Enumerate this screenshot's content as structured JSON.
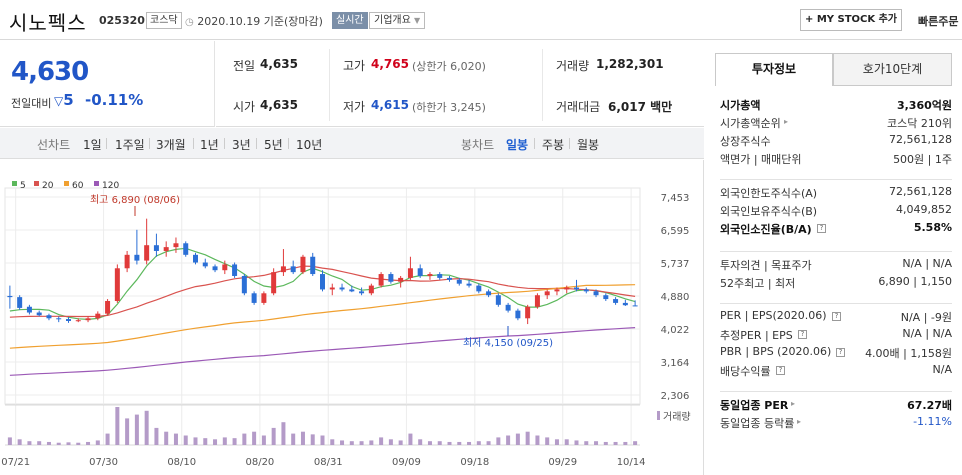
{
  "header": {
    "name": "시노펙스",
    "code": "025320",
    "market": "코스닥",
    "date_note": "2020.10.19 기준(장마감)",
    "realtime": "실시간",
    "corp_info": "기업개요",
    "mystock": "+ MY STOCK 추가",
    "quick_order": "빠른주문"
  },
  "price": {
    "current": "4,630",
    "change_label": "전일대비",
    "change": "5",
    "change_pct": "-0.11%"
  },
  "quote": {
    "prev_label": "전일",
    "prev": "4,635",
    "open_label": "시가",
    "open": "4,635",
    "high_label": "고가",
    "high": "4,765",
    "upper_limit": "(상한가 6,020)",
    "low_label": "저가",
    "low": "4,615",
    "lower_limit": "(하한가 3,245)",
    "volume_label": "거래량",
    "volume": "1,282,301",
    "amount_label": "거래대금",
    "amount": "6,017 백만"
  },
  "periods": {
    "label": "선차트",
    "items": [
      "1일",
      "1주일",
      "3개월",
      "1년",
      "3년",
      "5년",
      "10년"
    ],
    "candle_label": "봉차트",
    "candle_items": [
      "일봉",
      "주봉",
      "월봉"
    ],
    "active_candle": "일봉"
  },
  "chart_data": {
    "type": "line",
    "legend": [
      "5",
      "20",
      "60",
      "120"
    ],
    "legend_colors": [
      "#5cb85c",
      "#d9534f",
      "#f0a030",
      "#9b59b6"
    ],
    "y_ticks": [
      "7,453",
      "6,595",
      "5,737",
      "4,880",
      "4,022",
      "3,164",
      "2,306"
    ],
    "ylim": [
      2306,
      7453
    ],
    "x_ticks": [
      "07/21",
      "07/30",
      "08/10",
      "08/20",
      "08/31",
      "09/09",
      "09/18",
      "09/29",
      "10/14"
    ],
    "annot_high": "최고 6,890 (08/06)",
    "annot_low": "최저 4,150 (09/25)",
    "volume_label": "거래량",
    "candles": [
      [
        4880,
        5150,
        4550,
        4850
      ],
      [
        4850,
        4900,
        4520,
        4570
      ],
      [
        4600,
        4650,
        4400,
        4450
      ],
      [
        4450,
        4500,
        4350,
        4380
      ],
      [
        4380,
        4420,
        4250,
        4300
      ],
      [
        4300,
        4350,
        4200,
        4280
      ],
      [
        4280,
        4330,
        4180,
        4230
      ],
      [
        4230,
        4300,
        4200,
        4250
      ],
      [
        4250,
        4350,
        4200,
        4300
      ],
      [
        4300,
        4480,
        4250,
        4420
      ],
      [
        4420,
        4800,
        4380,
        4750
      ],
      [
        4750,
        5700,
        4700,
        5600
      ],
      [
        5600,
        6050,
        5500,
        5950
      ],
      [
        5950,
        6600,
        5700,
        5800
      ],
      [
        5800,
        6890,
        5700,
        6200
      ],
      [
        6200,
        6500,
        5900,
        6050
      ],
      [
        6050,
        6300,
        5900,
        6150
      ],
      [
        6150,
        6400,
        6000,
        6250
      ],
      [
        6250,
        6300,
        5900,
        5950
      ],
      [
        5950,
        6000,
        5700,
        5750
      ],
      [
        5750,
        5850,
        5600,
        5650
      ],
      [
        5650,
        5700,
        5500,
        5550
      ],
      [
        5550,
        5800,
        5450,
        5700
      ],
      [
        5700,
        5750,
        5350,
        5400
      ],
      [
        5400,
        5450,
        4900,
        4950
      ],
      [
        4950,
        5000,
        4650,
        4700
      ],
      [
        4700,
        5000,
        4650,
        4950
      ],
      [
        4950,
        5600,
        4900,
        5500
      ],
      [
        5500,
        6100,
        5400,
        5650
      ],
      [
        5650,
        5800,
        5450,
        5500
      ],
      [
        5500,
        5950,
        5450,
        5900
      ],
      [
        5900,
        6000,
        5400,
        5450
      ],
      [
        5450,
        5550,
        5000,
        5050
      ],
      [
        5050,
        5200,
        4900,
        5100
      ],
      [
        5100,
        5200,
        5000,
        5050
      ],
      [
        5050,
        5150,
        4980,
        5000
      ],
      [
        5000,
        5100,
        4900,
        4950
      ],
      [
        4950,
        5200,
        4900,
        5150
      ],
      [
        5150,
        5500,
        5100,
        5450
      ],
      [
        5450,
        5500,
        5200,
        5250
      ],
      [
        5250,
        5400,
        5100,
        5350
      ],
      [
        5350,
        5900,
        5300,
        5600
      ],
      [
        5600,
        5700,
        5350,
        5400
      ],
      [
        5400,
        5500,
        5300,
        5450
      ],
      [
        5450,
        5500,
        5300,
        5350
      ],
      [
        5350,
        5400,
        5250,
        5300
      ],
      [
        5300,
        5350,
        5150,
        5200
      ],
      [
        5200,
        5300,
        5100,
        5150
      ],
      [
        5150,
        5200,
        4950,
        5000
      ],
      [
        5000,
        5050,
        4850,
        4900
      ],
      [
        4900,
        4950,
        4600,
        4650
      ],
      [
        4650,
        4700,
        4450,
        4500
      ],
      [
        4500,
        4550,
        4250,
        4300
      ],
      [
        4300,
        4650,
        4150,
        4600
      ],
      [
        4600,
        4950,
        4550,
        4900
      ],
      [
        4900,
        5050,
        4800,
        5000
      ],
      [
        5000,
        5100,
        4900,
        5050
      ],
      [
        5050,
        5150,
        4950,
        5100
      ],
      [
        5100,
        5300,
        5000,
        5050
      ],
      [
        5050,
        5100,
        4950,
        5000
      ],
      [
        5000,
        5050,
        4850,
        4900
      ],
      [
        4900,
        4950,
        4750,
        4800
      ],
      [
        4800,
        4850,
        4650,
        4700
      ],
      [
        4700,
        4780,
        4620,
        4640
      ],
      [
        4635,
        4765,
        4615,
        4630
      ]
    ],
    "volume_rel": [
      0.2,
      0.15,
      0.1,
      0.1,
      0.08,
      0.06,
      0.07,
      0.06,
      0.08,
      0.12,
      0.3,
      1.0,
      0.7,
      0.8,
      0.9,
      0.45,
      0.35,
      0.3,
      0.25,
      0.2,
      0.18,
      0.15,
      0.2,
      0.18,
      0.3,
      0.35,
      0.25,
      0.45,
      0.6,
      0.3,
      0.35,
      0.28,
      0.25,
      0.15,
      0.12,
      0.1,
      0.1,
      0.12,
      0.2,
      0.15,
      0.12,
      0.3,
      0.15,
      0.1,
      0.1,
      0.08,
      0.08,
      0.08,
      0.1,
      0.1,
      0.2,
      0.25,
      0.3,
      0.35,
      0.25,
      0.2,
      0.15,
      0.15,
      0.12,
      0.1,
      0.1,
      0.08,
      0.08,
      0.08,
      0.1
    ]
  },
  "side": {
    "tab_invest": "투자정보",
    "tab_hoga": "호가10단계",
    "rows1": [
      {
        "l": "시가총액",
        "r": "3,360억원",
        "bold": true
      },
      {
        "l": "시가총액순위",
        "r": "코스닥 210위"
      },
      {
        "l": "상장주식수",
        "r": "72,561,128"
      },
      {
        "l": "액면가 | 매매단위",
        "r": "500원 | 1주"
      }
    ],
    "rows2": [
      {
        "l": "외국인한도주식수(A)",
        "r": "72,561,128"
      },
      {
        "l": "외국인보유주식수(B)",
        "r": "4,049,852"
      },
      {
        "l": "외국인소진율(B/A)",
        "r": "5.58%",
        "bold": true
      }
    ],
    "rows3": [
      {
        "l": "투자의견 | 목표주가",
        "r": "N/A | N/A"
      },
      {
        "l": "52주최고 | 최저",
        "r": "6,890 | 1,150"
      }
    ],
    "rows4": [
      {
        "l": "PER | EPS(2020.06)",
        "r": "N/A | -9원"
      },
      {
        "l": "추정PER | EPS",
        "r": "N/A | N/A"
      },
      {
        "l": "PBR | BPS (2020.06)",
        "r": "4.00배 | 1,158원"
      },
      {
        "l": "배당수익률",
        "r": "N/A"
      }
    ],
    "rows5": [
      {
        "l": "동일업종 PER",
        "r": "67.27배",
        "bold": true
      },
      {
        "l": "동일업종 등락률",
        "r": "-1.11%",
        "blue": true
      }
    ]
  }
}
